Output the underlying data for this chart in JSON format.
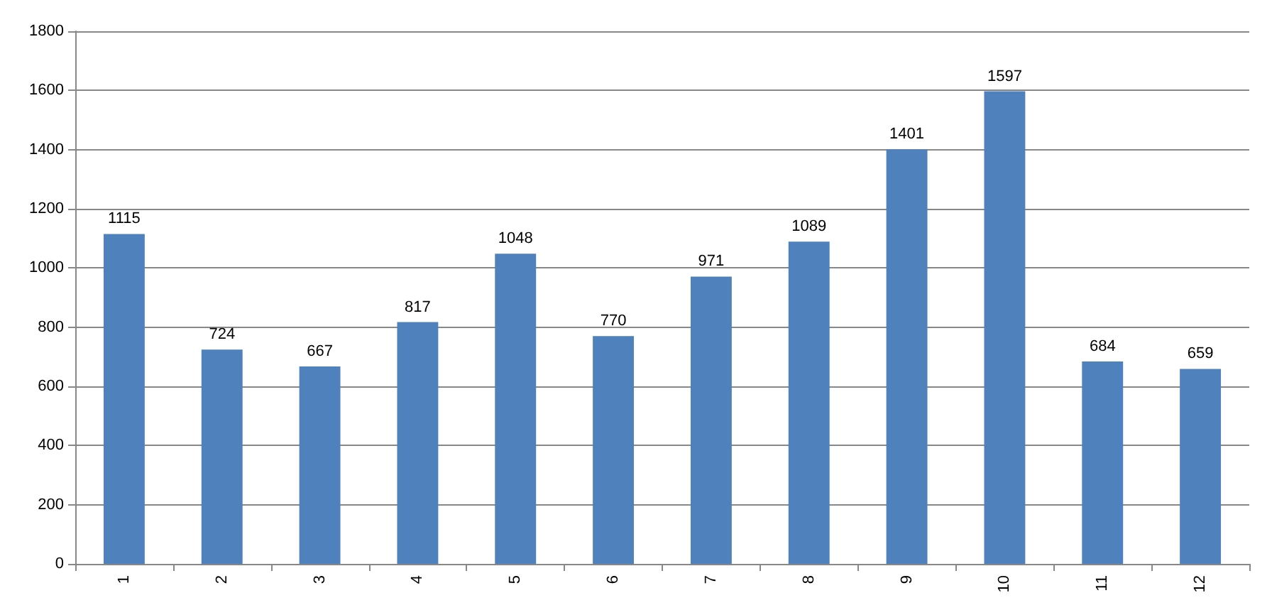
{
  "chart_data": {
    "type": "bar",
    "categories": [
      "1",
      "2",
      "3",
      "4",
      "5",
      "6",
      "7",
      "8",
      "9",
      "10",
      "11",
      "12"
    ],
    "values": [
      1115,
      724,
      667,
      817,
      1048,
      770,
      971,
      1089,
      1401,
      1597,
      684,
      659
    ],
    "color": "#4f81bd",
    "ylim": [
      0,
      1800
    ],
    "yticks": [
      0,
      200,
      400,
      600,
      800,
      1000,
      1200,
      1400,
      1600,
      1800
    ],
    "grid": "y",
    "data_labels": true
  }
}
